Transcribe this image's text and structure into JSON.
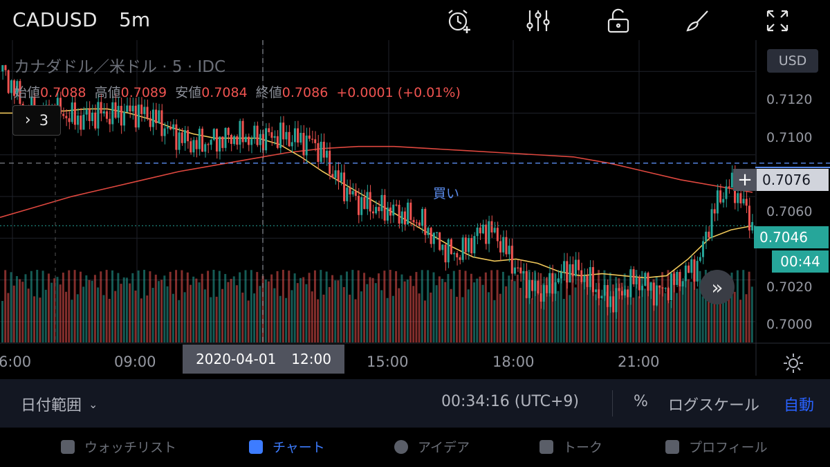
{
  "toolbar": {
    "symbol": "CADUSD",
    "interval": "5m",
    "icons": [
      "alarm-add-icon",
      "indicator-settings-icon",
      "unlock-icon",
      "brush-icon",
      "fullscreen-icon"
    ]
  },
  "legend": {
    "title": "カナダドル／米ドル · 5 · IDC",
    "open_label": "始値",
    "open": "0.7088",
    "high_label": "高値",
    "high": "0.7089",
    "low_label": "安値",
    "low": "0.7084",
    "close_label": "終値",
    "close": "0.7086",
    "change": "+0.0001 (+0.01%)",
    "indicator_count": "3"
  },
  "price_scale": {
    "currency": "USD",
    "labels": [
      "0.7120",
      "0.7100",
      "0.7080",
      "0.7060",
      "0.7040",
      "0.7020",
      "0.7000"
    ],
    "crosshair_price": "0.7076",
    "last_price": "0.7046",
    "countdown": "00:44"
  },
  "time_scale": {
    "labels": [
      "6:00",
      "09:00",
      "15:00",
      "18:00",
      "21:00"
    ],
    "crosshair_date": "2020-04-01",
    "crosshair_time": "12:00"
  },
  "annotations": {
    "buy_label": "買い"
  },
  "colors": {
    "up": "#26a69a",
    "down": "#ef5350",
    "ma_fast": "#f0c85a",
    "ma_slow": "#e0483f",
    "order_line": "#5b8def",
    "accent": "#2962ff"
  },
  "range_bar": {
    "date_range": "日付範囲",
    "clock": "00:34:16 (UTC+9)",
    "percent": "%",
    "log_scale": "ログスケール",
    "auto": "自動"
  },
  "nav": {
    "items": [
      {
        "label": "ウォッチリスト",
        "icon": "watchlist-icon"
      },
      {
        "label": "チャート",
        "icon": "chart-icon"
      },
      {
        "label": "アイデア",
        "icon": "ideas-icon"
      },
      {
        "label": "トーク",
        "icon": "chat-icon"
      },
      {
        "label": "プロフィール",
        "icon": "profile-icon"
      }
    ]
  },
  "chart_data": {
    "type": "candlestick",
    "symbol": "CADUSD",
    "interval": "5m",
    "ylim": [
      0.699,
      0.7135
    ],
    "order_line_price": 0.7076,
    "last_price": 0.7046,
    "close_series": [
      0.712,
      0.7112,
      0.7103,
      0.71,
      0.71,
      0.7101,
      0.7099,
      0.7097,
      0.7098,
      0.71,
      0.7099,
      0.71,
      0.7101,
      0.71,
      0.7098,
      0.7094,
      0.709,
      0.7087,
      0.7085,
      0.7086,
      0.7087,
      0.7088,
      0.7089,
      0.7088,
      0.7088,
      0.7089,
      0.7089,
      0.7088,
      0.7087,
      0.7086,
      0.708,
      0.707,
      0.7064,
      0.7058,
      0.7056,
      0.7054,
      0.7054,
      0.7052,
      0.705,
      0.7048,
      0.7042,
      0.7036,
      0.7032,
      0.7034,
      0.704,
      0.7045,
      0.7042,
      0.7034,
      0.7025,
      0.7018,
      0.7014,
      0.7016,
      0.7022,
      0.7026,
      0.7023,
      0.7018,
      0.7012,
      0.701,
      0.7015,
      0.702,
      0.7018,
      0.7014,
      0.7016,
      0.702,
      0.7024,
      0.7028,
      0.7048,
      0.706,
      0.7066,
      0.7058,
      0.7046
    ],
    "ma_fast": [
      0.71,
      0.71,
      0.7101,
      0.7101,
      0.7102,
      0.7102,
      0.71,
      0.7097,
      0.7093,
      0.709,
      0.7088,
      0.7088,
      0.7088,
      0.7085,
      0.7079,
      0.7072,
      0.7066,
      0.706,
      0.7054,
      0.7048,
      0.7042,
      0.7036,
      0.7031,
      0.7029,
      0.703,
      0.7028,
      0.7024,
      0.7022,
      0.7023,
      0.7022,
      0.7021,
      0.7022,
      0.703,
      0.704,
      0.7044,
      0.7046
    ],
    "ma_slow": [
      0.705,
      0.7055,
      0.706,
      0.7064,
      0.7068,
      0.7072,
      0.7075,
      0.7078,
      0.7081,
      0.7083,
      0.7084,
      0.7084,
      0.7083,
      0.7082,
      0.7081,
      0.708,
      0.7079,
      0.7076,
      0.7072,
      0.7068,
      0.7065,
      0.7062
    ]
  }
}
